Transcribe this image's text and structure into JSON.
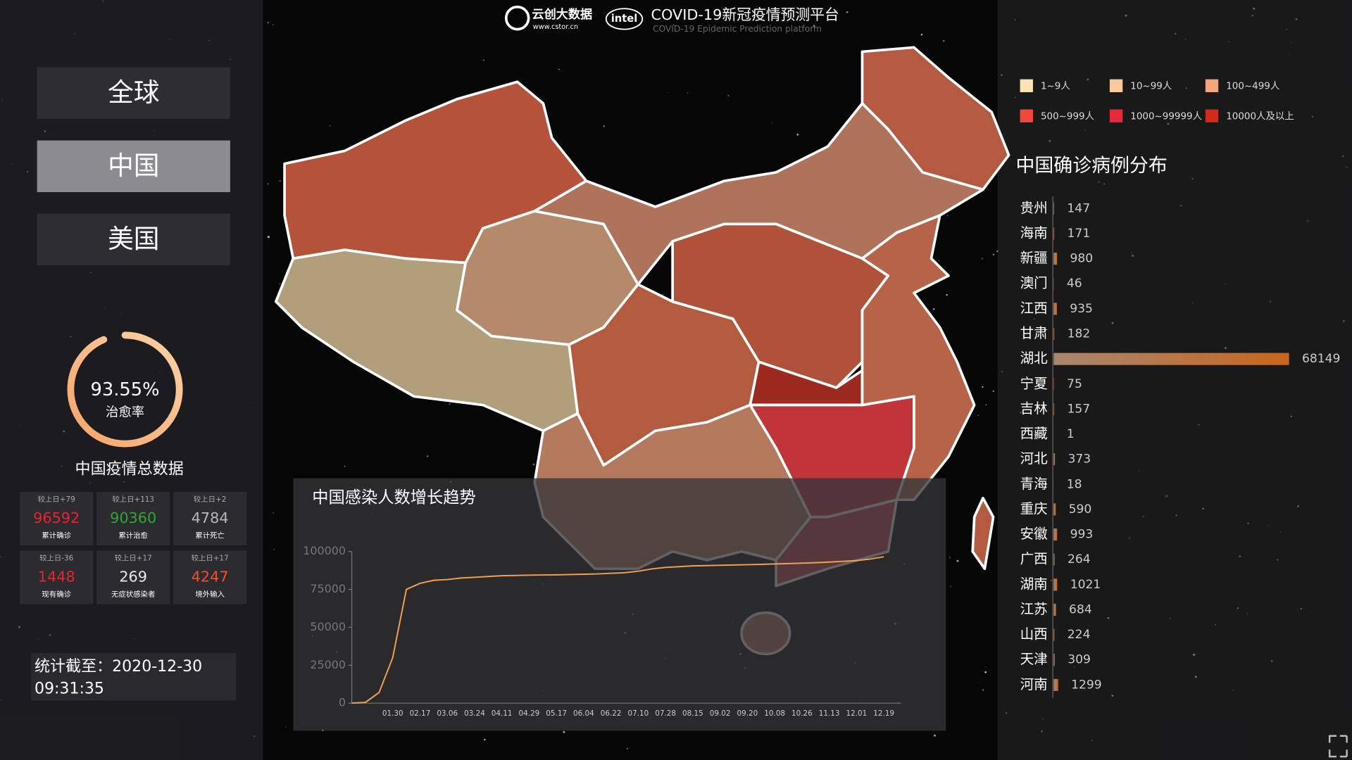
{
  "header": {
    "brand": "云创大数据",
    "url": "www.cstor.cn",
    "partner": "intel",
    "title": "COVID-19新冠疫情预测平台",
    "subtitle": "COVID-19 Epidemic Prediction platform"
  },
  "nav": {
    "items": [
      "全球",
      "中国",
      "美国"
    ],
    "active": 1
  },
  "recovery": {
    "value": 93.55,
    "value_label": "93.55%",
    "label": "治愈率"
  },
  "summary_title": "中国疫情总数据",
  "stats": [
    {
      "delta": "较上日+79",
      "value": 96592,
      "label": "累计确诊",
      "color": "#e3262f"
    },
    {
      "delta": "较上日+113",
      "value": 90360,
      "label": "累计治愈",
      "color": "#2ea82e"
    },
    {
      "delta": "较上日+2",
      "value": 4784,
      "label": "累计死亡",
      "color": "#b9b9b9"
    },
    {
      "delta": "较上日-36",
      "value": 1448,
      "label": "现有确诊",
      "color": "#e3262f"
    },
    {
      "delta": "较上日+17",
      "value": 269,
      "label": "无症状感染者",
      "color": "#e8e8e8"
    },
    {
      "delta": "较上日+17",
      "value": 4247,
      "label": "境外输入",
      "color": "#f0502a"
    }
  ],
  "timestamp": {
    "label": "统计截至：",
    "date": "2020-12-30",
    "time": "09:31:35"
  },
  "map_legend": [
    {
      "label": "1~9人",
      "color": "#fbe3b4"
    },
    {
      "label": "10~99人",
      "color": "#f9c89b"
    },
    {
      "label": "100~499人",
      "color": "#f4a57a"
    },
    {
      "label": "500~999人",
      "color": "#f2483a"
    },
    {
      "label": "1000~99999人",
      "color": "#e8293a"
    },
    {
      "label": "10000人及以上",
      "color": "#d42a1c"
    }
  ],
  "chart_data": [
    {
      "type": "line",
      "title": "中国感染人数增长趋势",
      "categories": [
        null,
        null,
        null,
        "01.30",
        null,
        "02.17",
        null,
        "03.06",
        null,
        "03.24",
        null,
        "04.11",
        null,
        "04.29",
        null,
        "05.17",
        null,
        "06.04",
        null,
        "06.22",
        null,
        "07.10",
        null,
        "07.28",
        null,
        "08.15",
        null,
        "09.02",
        null,
        "09.20",
        null,
        "10.08",
        null,
        "10.26",
        null,
        "11.13",
        null,
        "12.01",
        null,
        "12.19"
      ],
      "values": [
        0,
        500,
        7000,
        30000,
        75000,
        79000,
        81000,
        81500,
        82500,
        83000,
        83500,
        84000,
        84200,
        84400,
        84500,
        84600,
        84800,
        85000,
        85200,
        85600,
        86000,
        87000,
        88500,
        89500,
        90000,
        90500,
        90700,
        90900,
        91100,
        91300,
        91500,
        91800,
        92000,
        92300,
        92600,
        93000,
        93500,
        94000,
        95000,
        96500
      ],
      "color": "#f0a050",
      "ylim": [
        0,
        100000
      ],
      "yticks": [
        0,
        25000,
        50000,
        75000,
        100000
      ]
    },
    {
      "type": "bar",
      "orientation": "horizontal",
      "title": "中国确诊病例分布",
      "categories": [
        "贵州",
        "海南",
        "新疆",
        "澳门",
        "江西",
        "甘肃",
        "湖北",
        "宁夏",
        "吉林",
        "西藏",
        "河北",
        "青海",
        "重庆",
        "安徽",
        "广西",
        "湖南",
        "江苏",
        "山西",
        "天津",
        "河南"
      ],
      "values": [
        147,
        171,
        980,
        46,
        935,
        182,
        68149,
        75,
        157,
        1,
        373,
        18,
        590,
        993,
        264,
        1021,
        684,
        224,
        309,
        1299
      ],
      "color": "#c8661e"
    }
  ]
}
